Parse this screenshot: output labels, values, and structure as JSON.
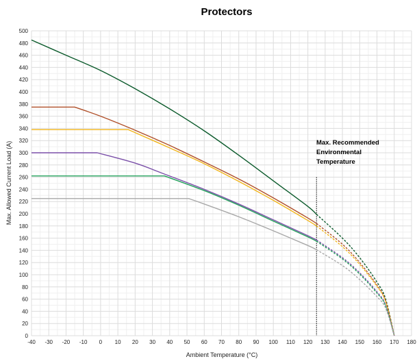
{
  "chart_data": {
    "type": "line",
    "title": "Protectors",
    "xlabel": "Ambient Temperature (°C)",
    "ylabel": "Max. Allowed Current Load (A)",
    "xlim": [
      -40,
      180
    ],
    "ylim": [
      0,
      500
    ],
    "x_ticks": [
      -40,
      -30,
      -20,
      -10,
      0,
      10,
      20,
      30,
      40,
      50,
      60,
      70,
      80,
      90,
      100,
      110,
      120,
      130,
      140,
      150,
      160,
      170,
      180
    ],
    "y_ticks": [
      0,
      20,
      40,
      60,
      80,
      100,
      120,
      140,
      160,
      180,
      200,
      220,
      240,
      260,
      280,
      300,
      320,
      340,
      360,
      380,
      400,
      420,
      440,
      460,
      480,
      500
    ],
    "grid": true,
    "legend": "none",
    "recommended_max_temperature": 125,
    "annotation": [
      "Max. Recommended",
      "Environmental",
      "Temperature"
    ],
    "series": [
      {
        "color": "#0b5a2b",
        "solid": [
          [
            -40,
            485
          ],
          [
            -20,
            460
          ],
          [
            0,
            435
          ],
          [
            20,
            405
          ],
          [
            40,
            372
          ],
          [
            60,
            336
          ],
          [
            80,
            296
          ],
          [
            100,
            254
          ],
          [
            120,
            212
          ],
          [
            125,
            199
          ]
        ],
        "dashed": [
          [
            125,
            199
          ],
          [
            140,
            160
          ],
          [
            150,
            128
          ],
          [
            160,
            88
          ],
          [
            165,
            60
          ],
          [
            170,
            0
          ]
        ]
      },
      {
        "color": "#b0502a",
        "solid": [
          [
            -40,
            375
          ],
          [
            -15,
            375
          ],
          [
            0,
            360
          ],
          [
            20,
            337
          ],
          [
            40,
            312
          ],
          [
            60,
            285
          ],
          [
            80,
            257
          ],
          [
            100,
            226
          ],
          [
            120,
            193
          ],
          [
            125,
            184
          ]
        ],
        "dashed": [
          [
            125,
            184
          ],
          [
            140,
            150
          ],
          [
            150,
            120
          ],
          [
            160,
            83
          ],
          [
            165,
            57
          ],
          [
            170,
            0
          ]
        ]
      },
      {
        "color": "#f2b51a",
        "solid": [
          [
            -40,
            338
          ],
          [
            16,
            338
          ],
          [
            20,
            333
          ],
          [
            40,
            308
          ],
          [
            60,
            282
          ],
          [
            80,
            253
          ],
          [
            100,
            222
          ],
          [
            120,
            189
          ],
          [
            125,
            180
          ]
        ],
        "dashed": [
          [
            125,
            180
          ],
          [
            140,
            146
          ],
          [
            150,
            117
          ],
          [
            160,
            81
          ],
          [
            165,
            56
          ],
          [
            170,
            0
          ]
        ]
      },
      {
        "color": "#7a4fa8",
        "solid": [
          [
            -40,
            300
          ],
          [
            -2,
            300
          ],
          [
            20,
            283
          ],
          [
            37,
            265
          ],
          [
            60,
            240
          ],
          [
            80,
            216
          ],
          [
            100,
            190
          ],
          [
            120,
            164
          ],
          [
            125,
            157
          ]
        ],
        "dashed": [
          [
            125,
            157
          ],
          [
            140,
            128
          ],
          [
            150,
            103
          ],
          [
            160,
            72
          ],
          [
            165,
            50
          ],
          [
            170,
            0
          ]
        ]
      },
      {
        "color": "#22a05a",
        "solid": [
          [
            -40,
            262
          ],
          [
            37,
            262
          ],
          [
            60,
            238
          ],
          [
            80,
            214
          ],
          [
            100,
            188
          ],
          [
            120,
            162
          ],
          [
            125,
            155
          ]
        ],
        "dashed": [
          [
            125,
            155
          ],
          [
            140,
            126
          ],
          [
            150,
            101
          ],
          [
            160,
            70
          ],
          [
            165,
            49
          ],
          [
            170,
            0
          ]
        ]
      },
      {
        "color": "#a8a8a8",
        "solid": [
          [
            -40,
            225
          ],
          [
            51,
            225
          ],
          [
            60,
            216
          ],
          [
            80,
            195
          ],
          [
            100,
            172
          ],
          [
            120,
            148
          ],
          [
            125,
            141
          ]
        ],
        "dashed": [
          [
            125,
            141
          ],
          [
            140,
            115
          ],
          [
            150,
            92
          ],
          [
            160,
            64
          ],
          [
            165,
            45
          ],
          [
            170,
            0
          ]
        ]
      }
    ]
  }
}
